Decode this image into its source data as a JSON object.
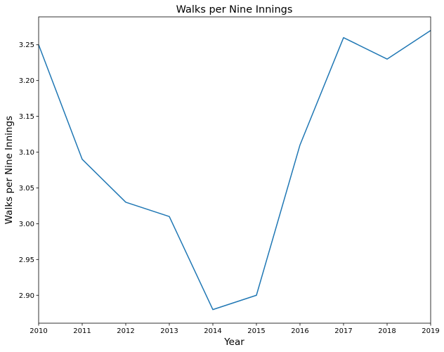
{
  "chart_data": {
    "type": "line",
    "title": "Walks per Nine Innings",
    "xlabel": "Year",
    "ylabel": "Walks per Nine Innings",
    "x": [
      2010,
      2011,
      2012,
      2013,
      2014,
      2015,
      2016,
      2017,
      2018,
      2019
    ],
    "series": [
      {
        "values": [
          3.25,
          3.09,
          3.03,
          3.01,
          2.88,
          2.9,
          3.11,
          3.26,
          3.23,
          3.27
        ],
        "color": "#1f77b4"
      }
    ],
    "xlim": [
      2010,
      2019
    ],
    "ylim": [
      2.861,
      3.289
    ],
    "x_ticks": [
      "2010",
      "2011",
      "2012",
      "2013",
      "2014",
      "2015",
      "2016",
      "2017",
      "2018",
      "2019"
    ],
    "y_ticks": [
      "2.90",
      "2.95",
      "3.00",
      "3.05",
      "3.10",
      "3.15",
      "3.20",
      "3.25"
    ],
    "grid": false,
    "legend": "none"
  }
}
